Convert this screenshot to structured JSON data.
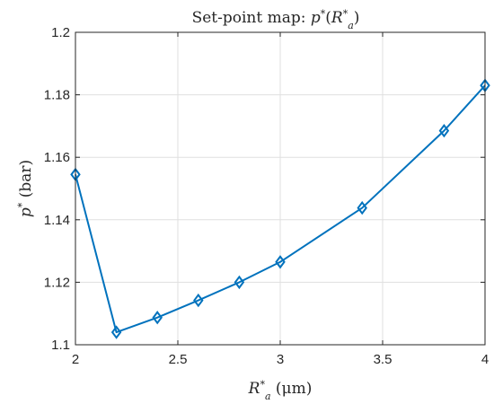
{
  "chart_data": {
    "type": "line",
    "title": "Set-point map: p*(R*a)",
    "title_parts": {
      "prefix": "Set-point map: ",
      "p": "p",
      "star": "*",
      "open": "(",
      "R": "R",
      "a": "a",
      "close": ")"
    },
    "xlabel": "R*a (μm)",
    "xlabel_parts": {
      "R": "R",
      "star": "*",
      "a": "a",
      "unit": " (μm)"
    },
    "ylabel": "p* (bar)",
    "ylabel_parts": {
      "p": "p",
      "star": "*",
      "unit": " (bar)"
    },
    "xlim": [
      2,
      4
    ],
    "ylim": [
      1.1,
      1.2
    ],
    "xticks": [
      "2",
      "2.5",
      "3",
      "3.5",
      "4"
    ],
    "yticks": [
      "1.1",
      "1.12",
      "1.14",
      "1.16",
      "1.18",
      "1.2"
    ],
    "grid": true,
    "marker": "diamond",
    "color": "#0072BD",
    "series": [
      {
        "x": [
          2.0,
          2.2,
          2.4,
          2.6,
          2.8,
          3.0,
          3.4,
          3.8,
          4.0
        ],
        "y": [
          1.1545,
          1.104,
          1.1087,
          1.1142,
          1.12,
          1.1265,
          1.1438,
          1.1685,
          1.183
        ]
      }
    ]
  }
}
